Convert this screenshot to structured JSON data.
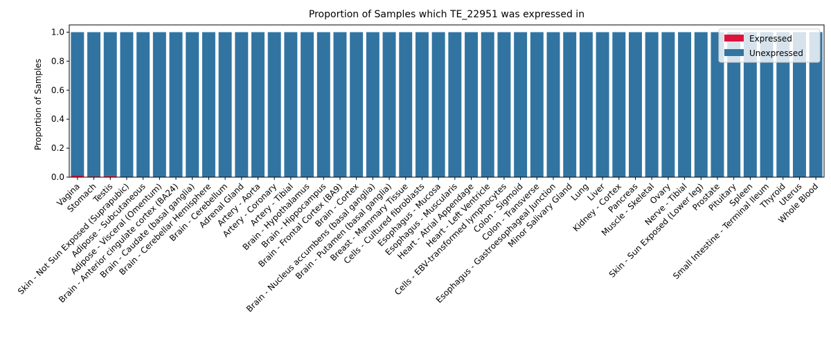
{
  "chart_data": {
    "type": "bar",
    "stacked": true,
    "title": "Proportion of Samples which TE_22951 was expressed in",
    "xlabel": "",
    "ylabel": "Proportion of Samples",
    "ylim": [
      0,
      1.05
    ],
    "yticks": [
      "0.0",
      "0.2",
      "0.4",
      "0.6",
      "0.8",
      "1.0"
    ],
    "legend_position": "top-right",
    "categories": [
      "Vagina",
      "Stomach",
      "Testis",
      "Skin - Not Sun Exposed (Suprapubic)",
      "Adipose - Subcutaneous",
      "Adipose - Visceral (Omentum)",
      "Brain - Anterior cingulate cortex (BA24)",
      "Brain - Caudate (basal ganglia)",
      "Brain - Cerebellar Hemisphere",
      "Brain - Cerebellum",
      "Adrenal Gland",
      "Artery - Aorta",
      "Artery - Coronary",
      "Artery - Tibial",
      "Brain - Hypothalamus",
      "Brain - Hippocampus",
      "Brain - Frontal Cortex (BA9)",
      "Brain - Cortex",
      "Brain - Nucleus accumbens (basal ganglia)",
      "Brain - Putamen (basal ganglia)",
      "Breast - Mammary Tissue",
      "Cells - Cultured fibroblasts",
      "Esophagus - Mucosa",
      "Esophagus - Muscularis",
      "Heart - Atrial Appendage",
      "Heart - Left Ventricle",
      "Cells - EBV-transformed lymphocytes",
      "Colon - Sigmoid",
      "Colon - Transverse",
      "Esophagus - Gastroesophageal Junction",
      "Minor Salivary Gland",
      "Lung",
      "Liver",
      "Kidney - Cortex",
      "Pancreas",
      "Muscle - Skeletal",
      "Ovary",
      "Nerve - Tibial",
      "Skin - Sun Exposed (Lower leg)",
      "Prostate",
      "Pituitary",
      "Spleen",
      "Small Intestine - Terminal Ileum",
      "Thyroid",
      "Uterus",
      "Whole Blood"
    ],
    "series": [
      {
        "name": "Expressed",
        "color": "#dc143c",
        "values": [
          0.012,
          0.005,
          0.008,
          0,
          0,
          0,
          0,
          0,
          0,
          0,
          0,
          0,
          0,
          0,
          0,
          0,
          0,
          0,
          0,
          0,
          0,
          0,
          0,
          0,
          0,
          0,
          0,
          0,
          0,
          0,
          0,
          0,
          0,
          0,
          0,
          0,
          0,
          0,
          0,
          0,
          0,
          0,
          0,
          0,
          0,
          0
        ]
      },
      {
        "name": "Unexpressed",
        "color": "#3274a1",
        "values": [
          0.988,
          0.995,
          0.992,
          1,
          1,
          1,
          1,
          1,
          1,
          1,
          1,
          1,
          1,
          1,
          1,
          1,
          1,
          1,
          1,
          1,
          1,
          1,
          1,
          1,
          1,
          1,
          1,
          1,
          1,
          1,
          1,
          1,
          1,
          1,
          1,
          1,
          1,
          1,
          1,
          1,
          1,
          1,
          1,
          1,
          1,
          1
        ]
      }
    ]
  }
}
